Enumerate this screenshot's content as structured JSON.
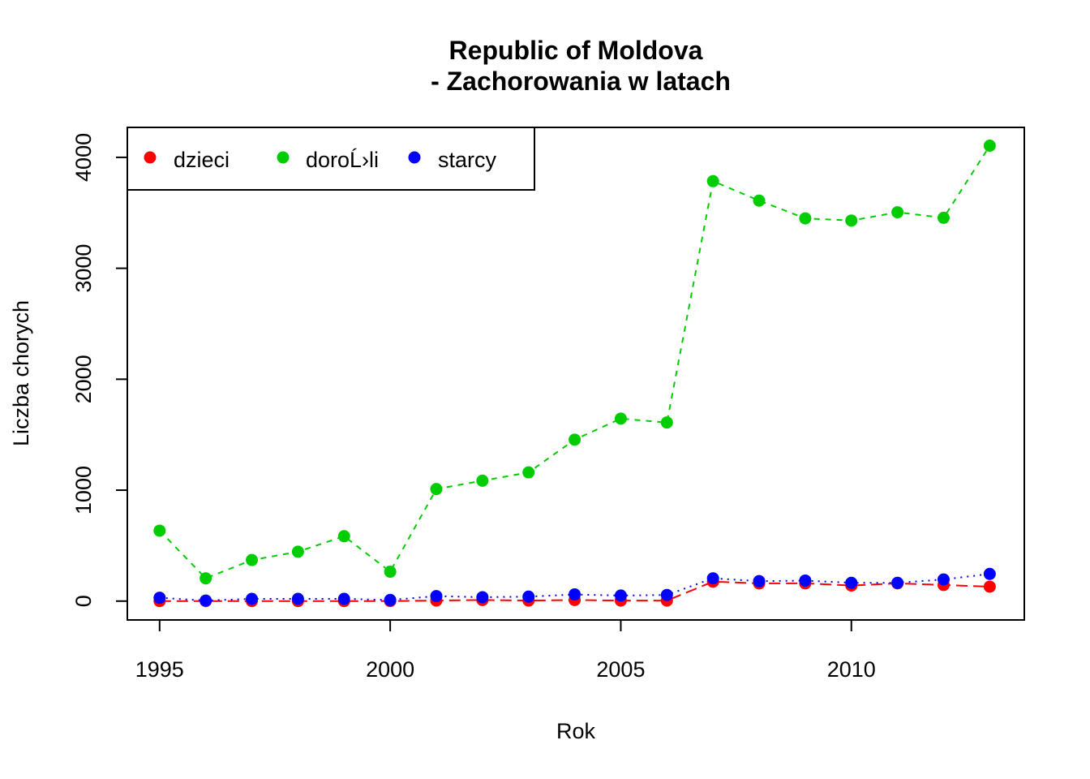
{
  "chart_data": {
    "type": "line",
    "title": "Republic of Moldova",
    "subtitle": "- Zachorowania w latach",
    "xlabel": "Rok",
    "ylabel": "Liczba chorych",
    "xlim": [
      1994.3,
      2013.75
    ],
    "ylim": [
      -170,
      4270
    ],
    "x_ticks": [
      1995,
      2000,
      2005,
      2010
    ],
    "y_ticks": [
      0,
      1000,
      2000,
      3000,
      4000
    ],
    "grid": false,
    "legend_position": "top-left",
    "x": [
      1995,
      1996,
      1997,
      1998,
      1999,
      2000,
      2001,
      2002,
      2003,
      2004,
      2005,
      2006,
      2007,
      2008,
      2009,
      2010,
      2011,
      2012,
      2013
    ],
    "series": [
      {
        "name": "dzieci",
        "color": "#ff0000",
        "line_style": "dashed",
        "values": [
          0,
          0,
          0,
          0,
          0,
          0,
          5,
          10,
          5,
          10,
          5,
          5,
          175,
          160,
          160,
          140,
          160,
          145,
          130
        ]
      },
      {
        "name": "doroĹ›li",
        "color": "#00cd00",
        "line_style": "dashed-short",
        "values": [
          635,
          205,
          370,
          445,
          585,
          265,
          1010,
          1085,
          1160,
          1455,
          1645,
          1610,
          3785,
          3610,
          3450,
          3430,
          3505,
          3455,
          4105
        ]
      },
      {
        "name": "starcy",
        "color": "#0000ff",
        "line_style": "dotted",
        "values": [
          30,
          5,
          20,
          20,
          20,
          10,
          45,
          35,
          40,
          60,
          50,
          55,
          205,
          180,
          185,
          165,
          165,
          195,
          245
        ]
      }
    ]
  }
}
